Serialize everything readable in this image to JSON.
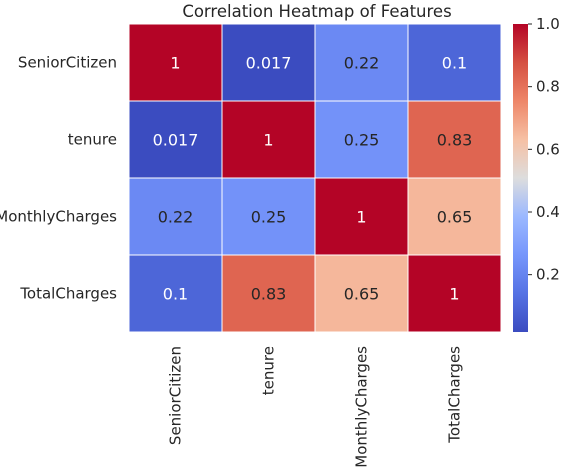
{
  "chart_data": {
    "type": "heatmap",
    "title": "Correlation Heatmap of Features",
    "rows": [
      "SeniorCitizen",
      "tenure",
      "MonthlyCharges",
      "TotalCharges"
    ],
    "columns": [
      "SeniorCitizen",
      "tenure",
      "MonthlyCharges",
      "TotalCharges"
    ],
    "values": [
      [
        1,
        0.017,
        0.22,
        0.1
      ],
      [
        0.017,
        1,
        0.25,
        0.83
      ],
      [
        0.22,
        0.25,
        1,
        0.65
      ],
      [
        0.1,
        0.83,
        0.65,
        1
      ]
    ],
    "cell_labels": [
      [
        "1",
        "0.017",
        "0.22",
        "0.1"
      ],
      [
        "0.017",
        "1",
        "0.25",
        "0.83"
      ],
      [
        "0.22",
        "0.25",
        "1",
        "0.65"
      ],
      [
        "0.1",
        "0.83",
        "0.65",
        "1"
      ]
    ],
    "colormap": "coolwarm",
    "vmin": 0.017,
    "vmax": 1.0,
    "colorbar_ticks": [
      0.2,
      0.4,
      0.6,
      0.8,
      1.0
    ],
    "colorbar_tick_labels": [
      "0.2",
      "0.4",
      "0.6",
      "0.8",
      "1.0"
    ],
    "grid_line_color": "#ffffff"
  }
}
